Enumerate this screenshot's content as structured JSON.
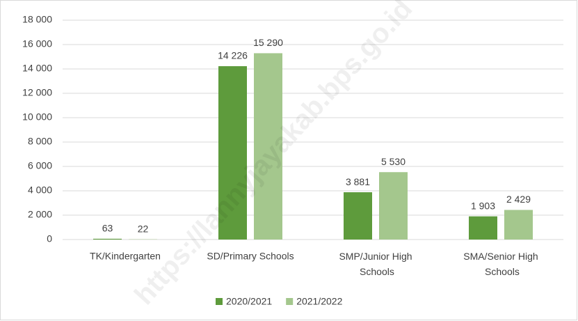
{
  "chart_data": {
    "type": "bar",
    "watermark": "https://lannyjayakab.bps.go.id",
    "categories": [
      "TK/Kindergarten",
      "SD/Primary Schools",
      "SMP/Junior High Schools",
      "SMA/Senior High Schools"
    ],
    "series": [
      {
        "name": "2020/2021",
        "color": "#5e9b3c",
        "values": [
          63,
          14226,
          3881,
          1903
        ],
        "value_labels": [
          "63",
          "14 226",
          "3 881",
          "1 903"
        ]
      },
      {
        "name": "2021/2022",
        "color": "#a4c78d",
        "values": [
          22,
          15290,
          5530,
          2429
        ],
        "value_labels": [
          "22",
          "15 290",
          "5 530",
          "2 429"
        ]
      }
    ],
    "ylim": [
      0,
      18000
    ],
    "yticks": [
      0,
      {
        "value": 2000,
        "label": "2 000"
      },
      {
        "value": 4000,
        "label": "4 000"
      },
      {
        "value": 6000,
        "label": "6 000"
      },
      {
        "value": 8000,
        "label": "8 000"
      },
      {
        "value": 10000,
        "label": "10 000"
      },
      {
        "value": 12000,
        "label": "12 000"
      },
      {
        "value": 14000,
        "label": "14 000"
      },
      {
        "value": 16000,
        "label": "16 000"
      },
      {
        "value": 18000,
        "label": "18 000"
      }
    ],
    "grid": true,
    "legend": "bottom"
  }
}
